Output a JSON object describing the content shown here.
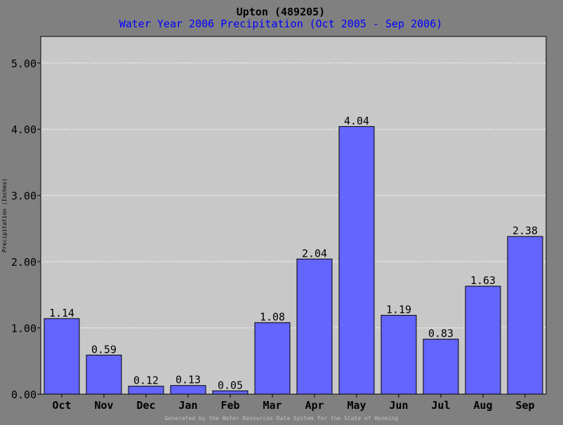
{
  "chart_data": {
    "type": "bar",
    "title": "Upton (489205)",
    "subtitle": "Water Year 2006 Precipitation (Oct 2005 - Sep 2006)",
    "ylabel": "Precipitation (Inches)",
    "xlabel": "",
    "ylim": [
      0,
      5.4
    ],
    "yticks": [
      "0.00",
      "1.00",
      "2.00",
      "3.00",
      "4.00",
      "5.00"
    ],
    "categories": [
      "Oct",
      "Nov",
      "Dec",
      "Jan",
      "Feb",
      "Mar",
      "Apr",
      "May",
      "Jun",
      "Jul",
      "Aug",
      "Sep"
    ],
    "values": [
      1.14,
      0.59,
      0.12,
      0.13,
      0.05,
      1.08,
      2.04,
      4.04,
      1.19,
      0.83,
      1.63,
      2.38
    ],
    "value_labels": [
      "1.14",
      "0.59",
      "0.12",
      "0.13",
      "0.05",
      "1.08",
      "2.04",
      "4.04",
      "1.19",
      "0.83",
      "1.63",
      "2.38"
    ],
    "grid": true,
    "legend": "none",
    "footer": "Generated by the Water Resources Data System for the State of Wyoming",
    "colors": {
      "bar": "#6464ff",
      "plot_bg": "#c8c8c8",
      "page_bg": "#808080",
      "subtitle": "#0000ff",
      "grid": "#ffffff"
    }
  }
}
